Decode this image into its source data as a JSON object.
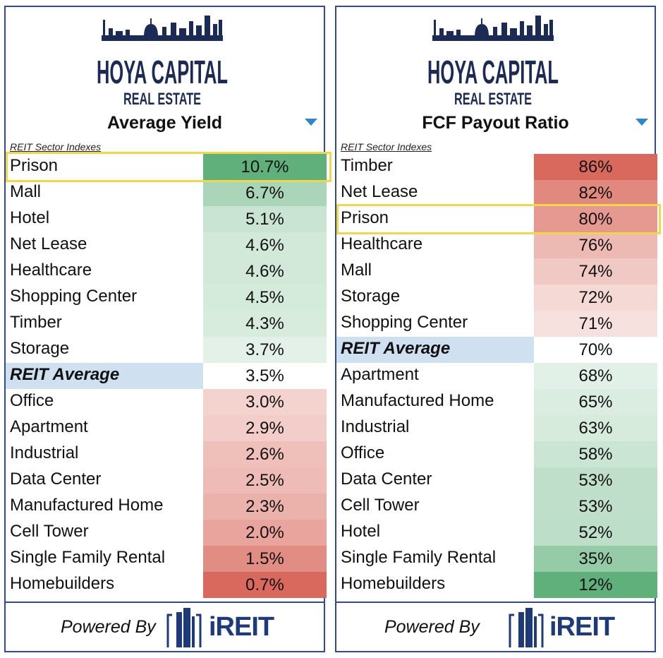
{
  "brand": {
    "name": "HOYA CAPITAL",
    "sub": "REAL ESTATE"
  },
  "footer": {
    "powered_by": "Powered By",
    "logo_text": "iREIT"
  },
  "colors": {
    "border": "#2f4d8a",
    "highlight": "#f0d84a",
    "dropdown": "#2e87c8",
    "avg_label_bg": "#cfe0f1",
    "positive": "#5fb07a",
    "negative": "#d9695d"
  },
  "chart_data": [
    {
      "type": "table",
      "title": "Average Yield",
      "subtitle": "REIT Sector Indexes",
      "highlighted_row": "Prison",
      "rows": [
        {
          "label": "Prison",
          "value": "10.7%",
          "v": 10.7
        },
        {
          "label": "Mall",
          "value": "6.7%",
          "v": 6.7
        },
        {
          "label": "Hotel",
          "value": "5.1%",
          "v": 5.1
        },
        {
          "label": "Net Lease",
          "value": "4.6%",
          "v": 4.6
        },
        {
          "label": "Healthcare",
          "value": "4.6%",
          "v": 4.6
        },
        {
          "label": "Shopping Center",
          "value": "4.5%",
          "v": 4.5
        },
        {
          "label": "Timber",
          "value": "4.3%",
          "v": 4.3
        },
        {
          "label": "Storage",
          "value": "3.7%",
          "v": 3.7
        },
        {
          "label": "REIT Average",
          "value": "3.5%",
          "v": 3.5,
          "average": true
        },
        {
          "label": "Office",
          "value": "3.0%",
          "v": 3.0
        },
        {
          "label": "Apartment",
          "value": "2.9%",
          "v": 2.9
        },
        {
          "label": "Industrial",
          "value": "2.6%",
          "v": 2.6
        },
        {
          "label": "Data Center",
          "value": "2.5%",
          "v": 2.5
        },
        {
          "label": "Manufactured Home",
          "value": "2.3%",
          "v": 2.3
        },
        {
          "label": "Cell Tower",
          "value": "2.0%",
          "v": 2.0
        },
        {
          "label": "Single Family Rental",
          "value": "1.5%",
          "v": 1.5
        },
        {
          "label": "Homebuilders",
          "value": "0.7%",
          "v": 0.7
        }
      ]
    },
    {
      "type": "table",
      "title": "FCF Payout Ratio",
      "subtitle": "REIT Sector Indexes",
      "highlighted_row": "Prison",
      "rows": [
        {
          "label": "Timber",
          "value": "86%",
          "v": 86
        },
        {
          "label": "Net Lease",
          "value": "82%",
          "v": 82
        },
        {
          "label": "Prison",
          "value": "80%",
          "v": 80
        },
        {
          "label": "Healthcare",
          "value": "76%",
          "v": 76
        },
        {
          "label": "Mall",
          "value": "74%",
          "v": 74
        },
        {
          "label": "Storage",
          "value": "72%",
          "v": 72
        },
        {
          "label": "Shopping Center",
          "value": "71%",
          "v": 71
        },
        {
          "label": "REIT Average",
          "value": "70%",
          "v": 70,
          "average": true
        },
        {
          "label": "Apartment",
          "value": "68%",
          "v": 68
        },
        {
          "label": "Manufactured Home",
          "value": "65%",
          "v": 65
        },
        {
          "label": "Industrial",
          "value": "63%",
          "v": 63
        },
        {
          "label": "Office",
          "value": "58%",
          "v": 58
        },
        {
          "label": "Data Center",
          "value": "53%",
          "v": 53
        },
        {
          "label": "Cell Tower",
          "value": "53%",
          "v": 53
        },
        {
          "label": "Hotel",
          "value": "52%",
          "v": 52
        },
        {
          "label": "Single Family Rental",
          "value": "35%",
          "v": 35
        },
        {
          "label": "Homebuilders",
          "value": "12%",
          "v": 12
        }
      ]
    }
  ]
}
